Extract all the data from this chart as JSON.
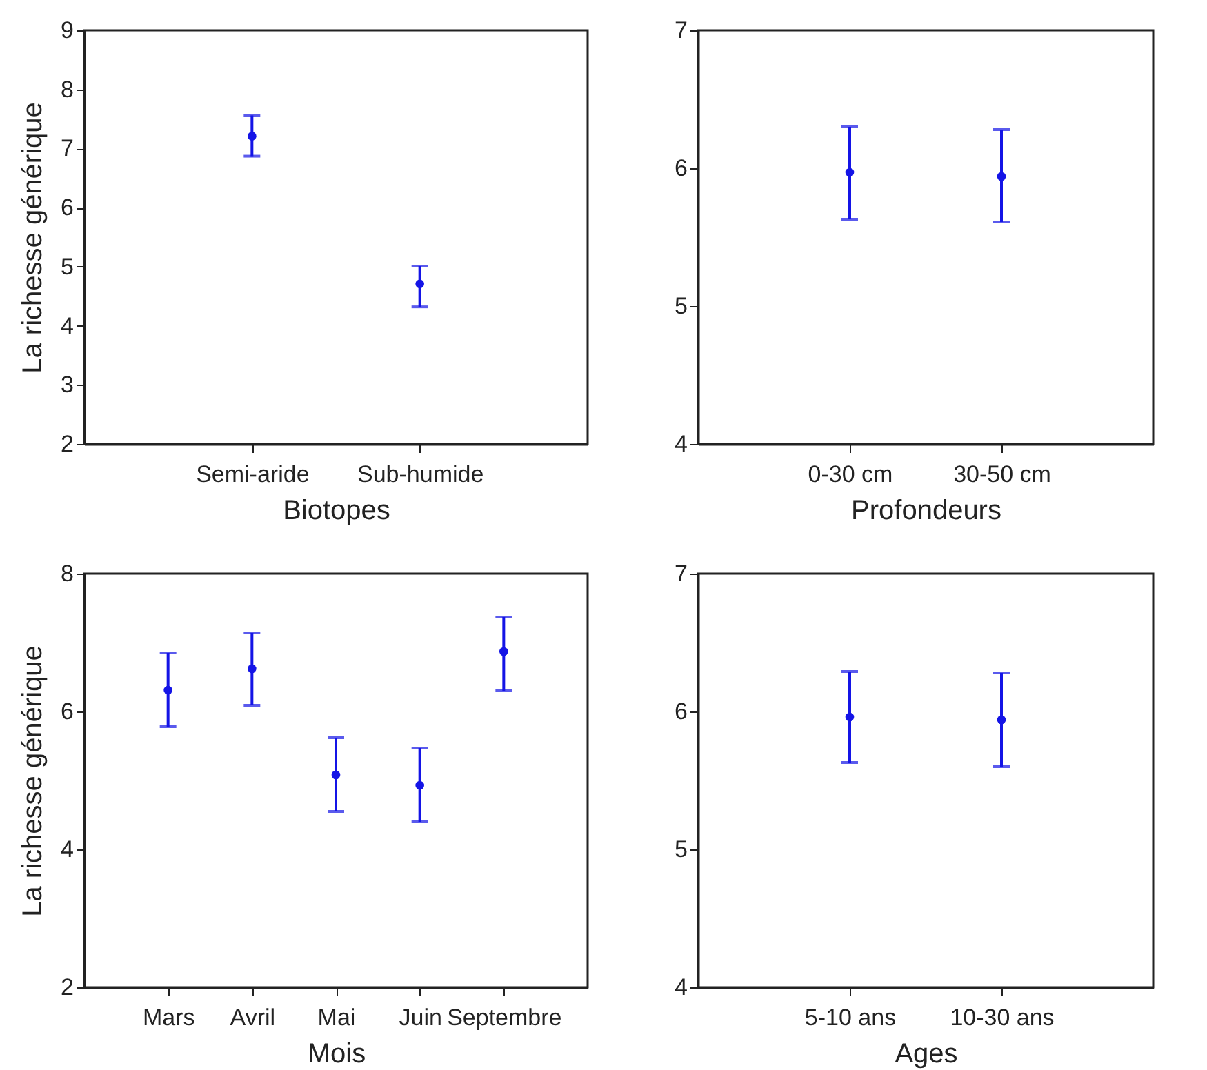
{
  "chart_data": [
    {
      "type": "scatter",
      "xlabel": "Biotopes",
      "ylabel": "La richesse générique",
      "categories": [
        "Semi-aride",
        "Sub-humide"
      ],
      "ylim": [
        2,
        9
      ],
      "yticks": [
        2,
        3,
        4,
        5,
        6,
        7,
        8,
        9
      ],
      "grid": false,
      "marker": "circle",
      "series": [
        {
          "color": "#1414e6",
          "values": [
            7.21,
            4.71
          ],
          "errors": [
            [
              6.87,
              7.56
            ],
            [
              4.32,
              5.01
            ]
          ]
        }
      ]
    },
    {
      "type": "scatter",
      "xlabel": "Profondeurs",
      "categories": [
        "0-30 cm",
        "30-50 cm"
      ],
      "ylim": [
        4,
        7
      ],
      "yticks": [
        4,
        5,
        6,
        7
      ],
      "grid": false,
      "marker": "circle",
      "series": [
        {
          "color": "#1414e6",
          "values": [
            5.97,
            5.94
          ],
          "errors": [
            [
              5.63,
              6.3
            ],
            [
              5.61,
              6.28
            ]
          ]
        }
      ]
    },
    {
      "type": "scatter",
      "xlabel": "Mois",
      "ylabel": "La richesse générique",
      "categories": [
        "Mars",
        "Avril",
        "Mai",
        "Juin",
        "Septembre"
      ],
      "ylim": [
        2,
        8
      ],
      "yticks": [
        2,
        4,
        6,
        8
      ],
      "grid": false,
      "marker": "circle",
      "series": [
        {
          "color": "#1414e6",
          "values": [
            6.31,
            6.62,
            5.08,
            4.93,
            6.87
          ],
          "errors": [
            [
              5.78,
              6.85
            ],
            [
              6.09,
              7.14
            ],
            [
              4.55,
              5.62
            ],
            [
              4.4,
              5.47
            ],
            [
              6.3,
              7.37
            ]
          ]
        }
      ]
    },
    {
      "type": "scatter",
      "xlabel": "Ages",
      "categories": [
        "5-10 ans",
        "10-30 ans"
      ],
      "ylim": [
        4,
        7
      ],
      "yticks": [
        4,
        5,
        6,
        7
      ],
      "grid": false,
      "marker": "circle",
      "series": [
        {
          "color": "#1414e6",
          "values": [
            5.96,
            5.94
          ],
          "errors": [
            [
              5.63,
              6.29
            ],
            [
              5.6,
              6.28
            ]
          ]
        }
      ]
    }
  ]
}
